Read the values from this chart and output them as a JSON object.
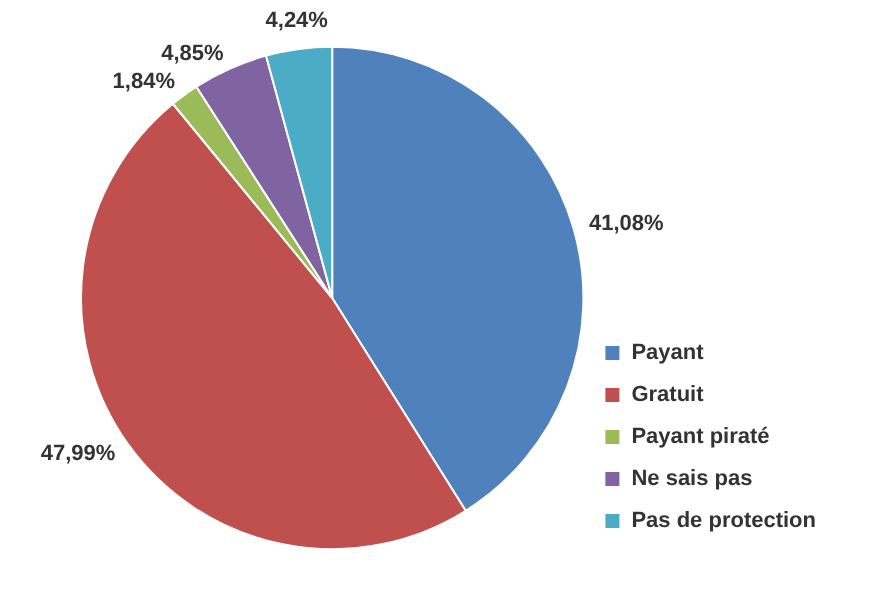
{
  "chart_data": {
    "type": "pie",
    "categories": [
      "Payant",
      "Gratuit",
      "Payant piraté",
      "Ne sais pas",
      "Pas de protection"
    ],
    "values": [
      41.08,
      47.99,
      1.84,
      4.85,
      4.24
    ],
    "value_labels": [
      "41,08%",
      "47,99%",
      "1,84%",
      "4,85%",
      "4,24%"
    ],
    "colors": [
      "#4f81bd",
      "#c0504d",
      "#9bbb59",
      "#8064a2",
      "#4bacc6"
    ],
    "legend": "right"
  }
}
